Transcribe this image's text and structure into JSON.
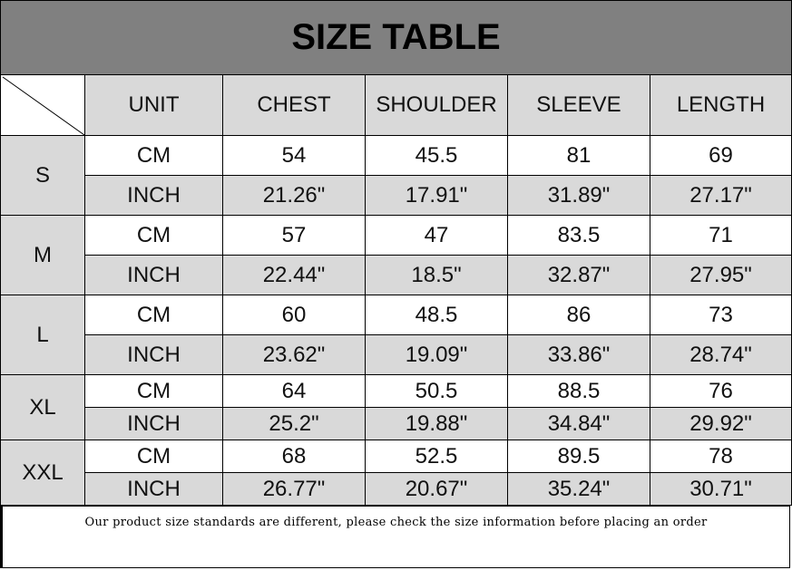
{
  "title": "SIZE TABLE",
  "headers": [
    "UNIT",
    "CHEST",
    "SHOULDER",
    "SLEEVE",
    "LENGTH"
  ],
  "sizes": [
    {
      "size": "S",
      "rows": [
        [
          "CM",
          "54",
          "45.5",
          "81",
          "69"
        ],
        [
          "INCH",
          "21.26\"",
          "17.91\"",
          "31.89\"",
          "27.17\""
        ]
      ]
    },
    {
      "size": "M",
      "rows": [
        [
          "CM",
          "57",
          "47",
          "83.5",
          "71"
        ],
        [
          "INCH",
          "22.44\"",
          "18.5\"",
          "32.87\"",
          "27.95\""
        ]
      ]
    },
    {
      "size": "L",
      "rows": [
        [
          "CM",
          "60",
          "48.5",
          "86",
          "73"
        ],
        [
          "INCH",
          "23.62\"",
          "19.09\"",
          "33.86\"",
          "28.74\""
        ]
      ]
    },
    {
      "size": "XL",
      "rows": [
        [
          "CM",
          "64",
          "50.5",
          "88.5",
          "76"
        ],
        [
          "INCH",
          "25.2\"",
          "19.88\"",
          "34.84\"",
          "29.92\""
        ]
      ]
    },
    {
      "size": "XXL",
      "rows": [
        [
          "CM",
          "68",
          "52.5",
          "89.5",
          "78"
        ],
        [
          "INCH",
          "26.77\"",
          "20.67\"",
          "35.24\"",
          "30.71\""
        ]
      ]
    }
  ],
  "footer": "Our product size standards are different, please check the size information before placing an order",
  "colors": {
    "title_bg": "#808080",
    "cell_gray": "#d9d9d9"
  }
}
